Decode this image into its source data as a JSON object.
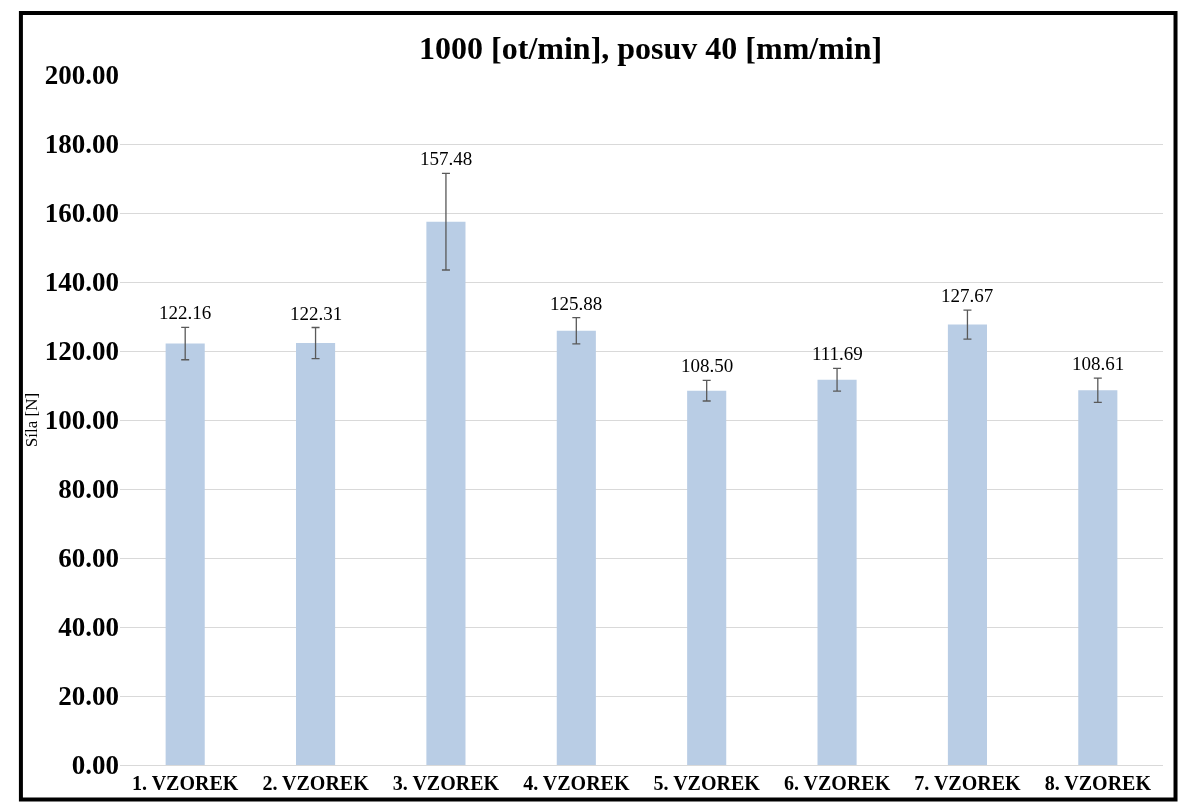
{
  "chart_data": {
    "type": "bar",
    "title": "1000 [ot/min], posuv 40 [mm/min]",
    "ylabel": "Síla [N]",
    "categories": [
      "1. VZOREK",
      "2. VZOREK",
      "3. VZOREK",
      "4. VZOREK",
      "5. VZOREK",
      "6. VZOREK",
      "7. VZOREK",
      "8. VZOREK"
    ],
    "series": [
      {
        "color": "#b9cde5",
        "values": [
          122.16,
          122.31,
          157.48,
          125.88,
          108.5,
          111.69,
          127.67,
          108.61
        ],
        "errors": [
          4.7,
          4.5,
          14,
          3.8,
          3,
          3.3,
          4.2,
          3.5
        ],
        "value_labels": [
          "122.16",
          "122.31",
          "157.48",
          "125.88",
          "108.50",
          "111.69",
          "127.67",
          "108.61"
        ]
      }
    ],
    "ylim": [
      0,
      200
    ],
    "yticks": [
      {
        "value": 0,
        "label": "0.00"
      },
      {
        "value": 20,
        "label": "20.00"
      },
      {
        "value": 40,
        "label": "40.00"
      },
      {
        "value": 60,
        "label": "60.00"
      },
      {
        "value": 80,
        "label": "80.00"
      },
      {
        "value": 100,
        "label": "100.00"
      },
      {
        "value": 120,
        "label": "120.00"
      },
      {
        "value": 140,
        "label": "140.00"
      },
      {
        "value": 160,
        "label": "160.00"
      },
      {
        "value": 180,
        "label": "180.00"
      },
      {
        "value": 200,
        "label": "200.00"
      }
    ],
    "grid": "y"
  }
}
